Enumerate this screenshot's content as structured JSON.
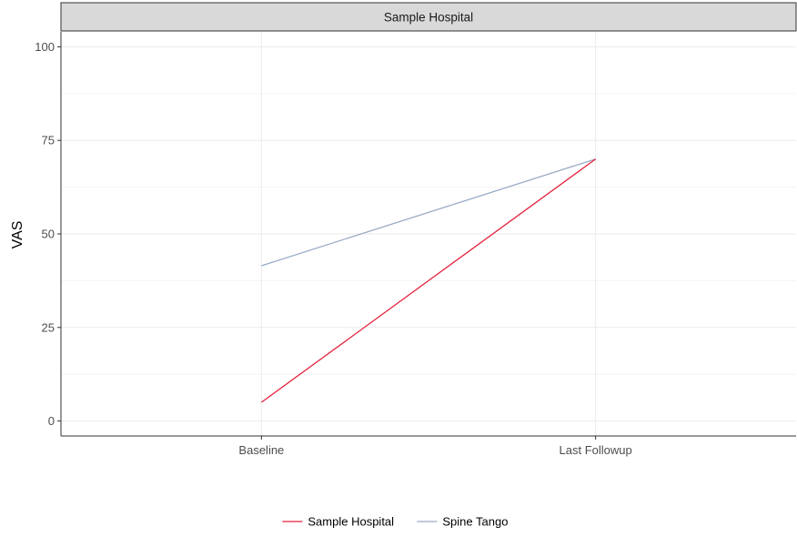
{
  "chart_data": {
    "type": "line",
    "facet_title": "Sample Hospital",
    "xlabel": "",
    "ylabel": "VAS",
    "categories": [
      "Baseline",
      "Last Followup"
    ],
    "ylim": [
      -4,
      104
    ],
    "yticks": [
      0,
      25,
      50,
      75,
      100
    ],
    "grid": true,
    "legend_position": "bottom",
    "series": [
      {
        "name": "Sample Hospital",
        "color": "#e3213c",
        "values": [
          5,
          70
        ]
      },
      {
        "name": "Spine Tango",
        "color": "#9aacc4",
        "values": [
          41.5,
          70
        ]
      }
    ]
  }
}
